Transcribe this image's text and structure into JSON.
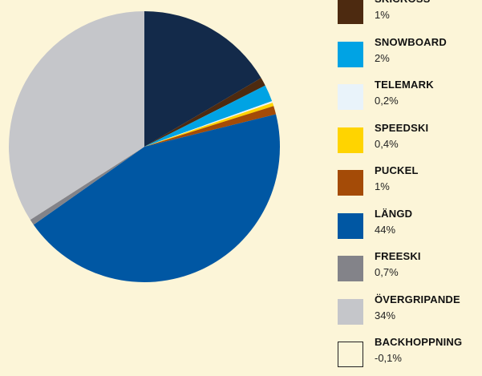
{
  "chart_data": {
    "type": "pie",
    "slices": [
      {
        "name": "",
        "value": 16.5,
        "color": "#132a4a"
      },
      {
        "name": "SKICROSS",
        "value": 1,
        "display": "1%",
        "color": "#4d2a10"
      },
      {
        "name": "SNOWBOARD",
        "value": 2,
        "display": "2%",
        "color": "#00a3e4"
      },
      {
        "name": "TELEMARK",
        "value": 0.2,
        "display": "0,2%",
        "color": "#e9f3fa"
      },
      {
        "name": "SPEEDSKI",
        "value": 0.4,
        "display": "0,4%",
        "color": "#ffd400"
      },
      {
        "name": "PUCKEL",
        "value": 1,
        "display": "1%",
        "color": "#a44b07"
      },
      {
        "name": "LÄNGD",
        "value": 44,
        "display": "44%",
        "color": "#0057a3"
      },
      {
        "name": "FREESKI",
        "value": 0.7,
        "display": "0,7%",
        "color": "#838389"
      },
      {
        "name": "ÖVERGRIPANDE",
        "value": 34,
        "display": "34%",
        "color": "#c5c6ca"
      },
      {
        "name": "BACKHOPPNING",
        "value": -0.1,
        "display": "-0,1%",
        "color": "#fcf5d8"
      }
    ],
    "legend_position": "right",
    "start_angle": "top",
    "direction": "clockwise"
  }
}
